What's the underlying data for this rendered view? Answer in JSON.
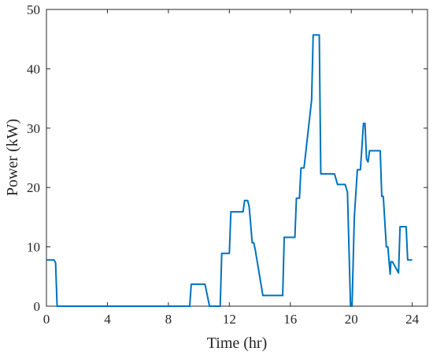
{
  "chart_data": {
    "type": "line",
    "xlabel": "Time (hr)",
    "ylabel": "Power (kW)",
    "xlim": [
      0,
      25
    ],
    "ylim": [
      0,
      50
    ],
    "xticks": [
      0,
      4,
      8,
      12,
      16,
      20,
      24
    ],
    "yticks": [
      0,
      10,
      20,
      30,
      40,
      50
    ],
    "grid": false,
    "line_color": "#0072BD",
    "series": [
      {
        "x": [
          0,
          0.5,
          0.6,
          0.7,
          9.4,
          9.5,
          10.4,
          10.5,
          10.7,
          11.4,
          11.5,
          11.6,
          12.0,
          12.1,
          12.9,
          13.0,
          13.2,
          13.3,
          13.5,
          13.6,
          13.7,
          14.2,
          14.3,
          15.5,
          15.6,
          16.3,
          16.4,
          16.6,
          16.7,
          16.9,
          17.4,
          17.5,
          17.6,
          17.9,
          18.0,
          18.1,
          18.9,
          19.1,
          19.6,
          19.75,
          19.85,
          19.95,
          20.05,
          20.2,
          20.4,
          20.6,
          20.8,
          20.9,
          21.0,
          21.1,
          21.2,
          21.9,
          22.0,
          22.1,
          22.3,
          22.4,
          22.55,
          22.6,
          22.7,
          23.1,
          23.2,
          23.6,
          23.7,
          24.0
        ],
        "y": [
          7.8,
          7.8,
          7.3,
          0,
          0,
          3.7,
          3.7,
          2.5,
          0,
          0,
          8.9,
          8.9,
          8.9,
          15.9,
          15.9,
          17.8,
          17.8,
          16.8,
          10.7,
          10.7,
          9.5,
          1.8,
          1.8,
          1.8,
          11.6,
          11.6,
          18.2,
          18.2,
          23.3,
          23.3,
          34.8,
          45.7,
          45.7,
          45.7,
          22.3,
          22.3,
          22.3,
          20.5,
          20.5,
          19.2,
          9.6,
          0,
          0,
          15.0,
          23.0,
          23.0,
          30.8,
          30.8,
          24.8,
          24.3,
          26.2,
          26.2,
          18.5,
          18.5,
          10.0,
          10.0,
          5.4,
          7.5,
          7.5,
          5.6,
          13.4,
          13.4,
          7.8,
          7.8
        ]
      }
    ]
  }
}
